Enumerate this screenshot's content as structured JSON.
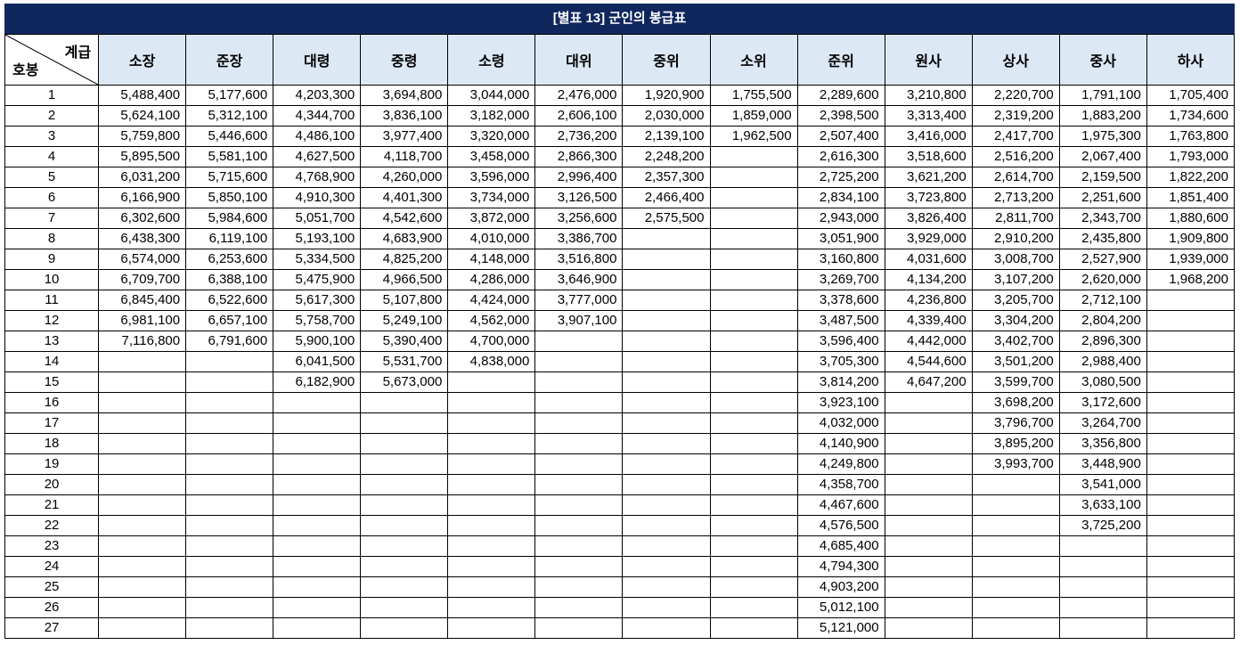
{
  "title": "[별표 13] 군인의 봉급표",
  "corner": {
    "grade_label": "계급",
    "step_label": "호봉"
  },
  "grades": [
    "소장",
    "준장",
    "대령",
    "중령",
    "소령",
    "대위",
    "중위",
    "소위",
    "준위",
    "원사",
    "상사",
    "중사",
    "하사"
  ],
  "rows": [
    {
      "step": "1",
      "values": [
        "5,488,400",
        "5,177,600",
        "4,203,300",
        "3,694,800",
        "3,044,000",
        "2,476,000",
        "1,920,900",
        "1,755,500",
        "2,289,600",
        "3,210,800",
        "2,220,700",
        "1,791,100",
        "1,705,400"
      ]
    },
    {
      "step": "2",
      "values": [
        "5,624,100",
        "5,312,100",
        "4,344,700",
        "3,836,100",
        "3,182,000",
        "2,606,100",
        "2,030,000",
        "1,859,000",
        "2,398,500",
        "3,313,400",
        "2,319,200",
        "1,883,200",
        "1,734,600"
      ]
    },
    {
      "step": "3",
      "values": [
        "5,759,800",
        "5,446,600",
        "4,486,100",
        "3,977,400",
        "3,320,000",
        "2,736,200",
        "2,139,100",
        "1,962,500",
        "2,507,400",
        "3,416,000",
        "2,417,700",
        "1,975,300",
        "1,763,800"
      ]
    },
    {
      "step": "4",
      "values": [
        "5,895,500",
        "5,581,100",
        "4,627,500",
        "4,118,700",
        "3,458,000",
        "2,866,300",
        "2,248,200",
        "",
        "2,616,300",
        "3,518,600",
        "2,516,200",
        "2,067,400",
        "1,793,000"
      ]
    },
    {
      "step": "5",
      "values": [
        "6,031,200",
        "5,715,600",
        "4,768,900",
        "4,260,000",
        "3,596,000",
        "2,996,400",
        "2,357,300",
        "",
        "2,725,200",
        "3,621,200",
        "2,614,700",
        "2,159,500",
        "1,822,200"
      ]
    },
    {
      "step": "6",
      "values": [
        "6,166,900",
        "5,850,100",
        "4,910,300",
        "4,401,300",
        "3,734,000",
        "3,126,500",
        "2,466,400",
        "",
        "2,834,100",
        "3,723,800",
        "2,713,200",
        "2,251,600",
        "1,851,400"
      ]
    },
    {
      "step": "7",
      "values": [
        "6,302,600",
        "5,984,600",
        "5,051,700",
        "4,542,600",
        "3,872,000",
        "3,256,600",
        "2,575,500",
        "",
        "2,943,000",
        "3,826,400",
        "2,811,700",
        "2,343,700",
        "1,880,600"
      ]
    },
    {
      "step": "8",
      "values": [
        "6,438,300",
        "6,119,100",
        "5,193,100",
        "4,683,900",
        "4,010,000",
        "3,386,700",
        "",
        "",
        "3,051,900",
        "3,929,000",
        "2,910,200",
        "2,435,800",
        "1,909,800"
      ]
    },
    {
      "step": "9",
      "values": [
        "6,574,000",
        "6,253,600",
        "5,334,500",
        "4,825,200",
        "4,148,000",
        "3,516,800",
        "",
        "",
        "3,160,800",
        "4,031,600",
        "3,008,700",
        "2,527,900",
        "1,939,000"
      ]
    },
    {
      "step": "10",
      "values": [
        "6,709,700",
        "6,388,100",
        "5,475,900",
        "4,966,500",
        "4,286,000",
        "3,646,900",
        "",
        "",
        "3,269,700",
        "4,134,200",
        "3,107,200",
        "2,620,000",
        "1,968,200"
      ]
    },
    {
      "step": "11",
      "values": [
        "6,845,400",
        "6,522,600",
        "5,617,300",
        "5,107,800",
        "4,424,000",
        "3,777,000",
        "",
        "",
        "3,378,600",
        "4,236,800",
        "3,205,700",
        "2,712,100",
        ""
      ]
    },
    {
      "step": "12",
      "values": [
        "6,981,100",
        "6,657,100",
        "5,758,700",
        "5,249,100",
        "4,562,000",
        "3,907,100",
        "",
        "",
        "3,487,500",
        "4,339,400",
        "3,304,200",
        "2,804,200",
        ""
      ]
    },
    {
      "step": "13",
      "values": [
        "7,116,800",
        "6,791,600",
        "5,900,100",
        "5,390,400",
        "4,700,000",
        "",
        "",
        "",
        "3,596,400",
        "4,442,000",
        "3,402,700",
        "2,896,300",
        ""
      ]
    },
    {
      "step": "14",
      "values": [
        "",
        "",
        "6,041,500",
        "5,531,700",
        "4,838,000",
        "",
        "",
        "",
        "3,705,300",
        "4,544,600",
        "3,501,200",
        "2,988,400",
        ""
      ]
    },
    {
      "step": "15",
      "values": [
        "",
        "",
        "6,182,900",
        "5,673,000",
        "",
        "",
        "",
        "",
        "3,814,200",
        "4,647,200",
        "3,599,700",
        "3,080,500",
        ""
      ]
    },
    {
      "step": "16",
      "values": [
        "",
        "",
        "",
        "",
        "",
        "",
        "",
        "",
        "3,923,100",
        "",
        "3,698,200",
        "3,172,600",
        ""
      ]
    },
    {
      "step": "17",
      "values": [
        "",
        "",
        "",
        "",
        "",
        "",
        "",
        "",
        "4,032,000",
        "",
        "3,796,700",
        "3,264,700",
        ""
      ]
    },
    {
      "step": "18",
      "values": [
        "",
        "",
        "",
        "",
        "",
        "",
        "",
        "",
        "4,140,900",
        "",
        "3,895,200",
        "3,356,800",
        ""
      ]
    },
    {
      "step": "19",
      "values": [
        "",
        "",
        "",
        "",
        "",
        "",
        "",
        "",
        "4,249,800",
        "",
        "3,993,700",
        "3,448,900",
        ""
      ]
    },
    {
      "step": "20",
      "values": [
        "",
        "",
        "",
        "",
        "",
        "",
        "",
        "",
        "4,358,700",
        "",
        "",
        "3,541,000",
        ""
      ]
    },
    {
      "step": "21",
      "values": [
        "",
        "",
        "",
        "",
        "",
        "",
        "",
        "",
        "4,467,600",
        "",
        "",
        "3,633,100",
        ""
      ]
    },
    {
      "step": "22",
      "values": [
        "",
        "",
        "",
        "",
        "",
        "",
        "",
        "",
        "4,576,500",
        "",
        "",
        "3,725,200",
        ""
      ]
    },
    {
      "step": "23",
      "values": [
        "",
        "",
        "",
        "",
        "",
        "",
        "",
        "",
        "4,685,400",
        "",
        "",
        "",
        ""
      ]
    },
    {
      "step": "24",
      "values": [
        "",
        "",
        "",
        "",
        "",
        "",
        "",
        "",
        "4,794,300",
        "",
        "",
        "",
        ""
      ]
    },
    {
      "step": "25",
      "values": [
        "",
        "",
        "",
        "",
        "",
        "",
        "",
        "",
        "4,903,200",
        "",
        "",
        "",
        ""
      ]
    },
    {
      "step": "26",
      "values": [
        "",
        "",
        "",
        "",
        "",
        "",
        "",
        "",
        "5,012,100",
        "",
        "",
        "",
        ""
      ]
    },
    {
      "step": "27",
      "values": [
        "",
        "",
        "",
        "",
        "",
        "",
        "",
        "",
        "5,121,000",
        "",
        "",
        "",
        ""
      ]
    }
  ]
}
